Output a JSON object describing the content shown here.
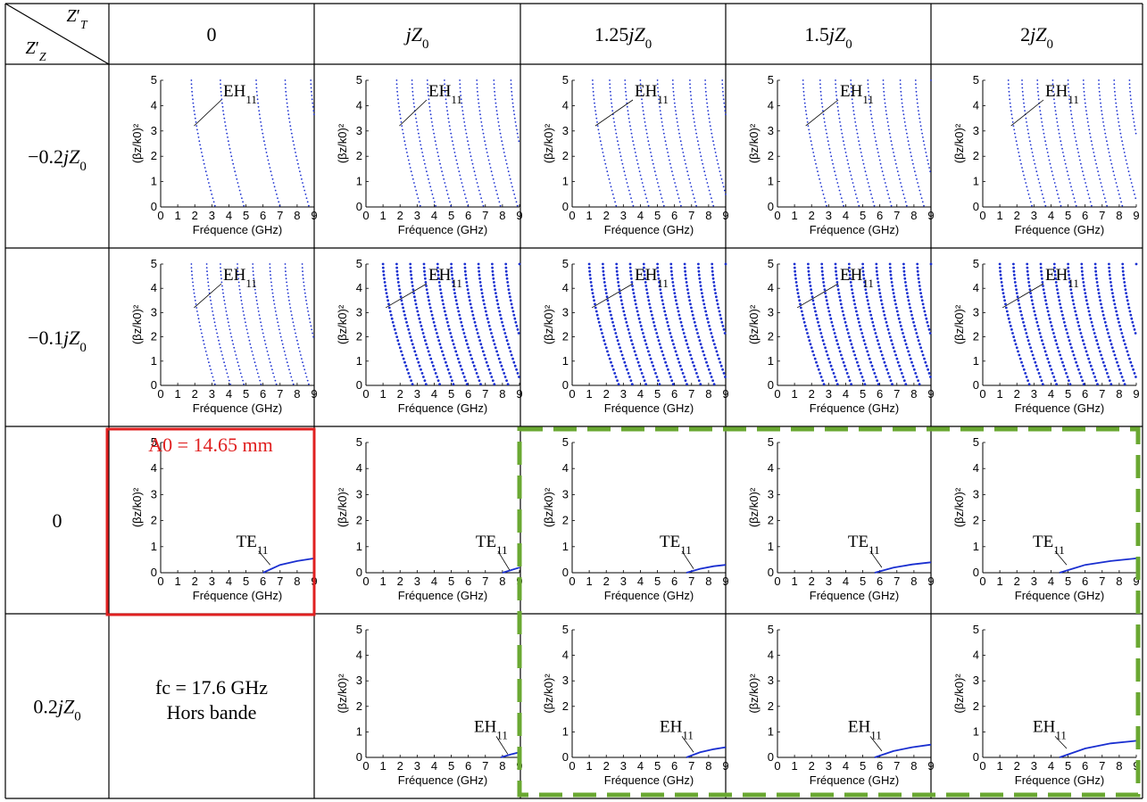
{
  "table": {
    "corner": {
      "top": "Z′T",
      "bottom": "Z′Z"
    },
    "col_headers": [
      "0",
      "jZ0",
      "1.25jZ0",
      "1.5jZ0",
      "2jZ0"
    ],
    "row_headers": [
      "−0.2jZ0",
      "−0.1jZ0",
      "0",
      "0.2jZ0"
    ]
  },
  "plot_axes": {
    "xlabel": "Fréquence (GHz)",
    "ylabel": "(βz/k0)²",
    "x_ticks": [
      "0",
      "1",
      "2",
      "3",
      "4",
      "5",
      "6",
      "7",
      "8",
      "9"
    ],
    "y_ticks": [
      "0",
      "1",
      "2",
      "3",
      "4",
      "5"
    ],
    "xlim": [
      0,
      9
    ],
    "ylim": [
      0,
      5
    ]
  },
  "highlight": {
    "red_box_label": "A0 = 14.65 mm",
    "red_box_color": "#e02020",
    "green_box_color": "#6aa832"
  },
  "note_cell": {
    "line1": "fc = 17.6 GHz",
    "line2": "Hors bande"
  },
  "curve_color": "#1a2fd0",
  "chart_data": [
    {
      "type": "scatter",
      "row": "−0.2jZ0",
      "col": "0",
      "mode_label": "EH11",
      "x_cutoffs": [
        1.8,
        3.5,
        5.6,
        7.3,
        8.8
      ]
    },
    {
      "type": "scatter",
      "row": "−0.2jZ0",
      "col": "jZ0",
      "mode_label": "EH11",
      "x_cutoffs": [
        1.8,
        2.7,
        3.6,
        4.6,
        5.5,
        6.5,
        7.5,
        8.5
      ]
    },
    {
      "type": "scatter",
      "row": "−0.2jZ0",
      "col": "1.25jZ0",
      "mode_label": "EH11",
      "x_cutoffs": [
        1.2,
        2.2,
        3.1,
        4.0,
        5.0,
        5.9,
        6.9,
        7.8,
        8.8
      ]
    },
    {
      "type": "scatter",
      "row": "−0.2jZ0",
      "col": "1.5jZ0",
      "mode_label": "EH11",
      "x_cutoffs": [
        1.5,
        2.5,
        3.4,
        4.3,
        5.3,
        6.2,
        7.2,
        8.1,
        9.0
      ]
    },
    {
      "type": "scatter",
      "row": "−0.2jZ0",
      "col": "2jZ0",
      "mode_label": "EH11",
      "x_cutoffs": [
        1.5,
        2.3,
        3.2,
        4.1,
        5.0,
        5.9,
        6.8,
        7.7,
        8.6
      ]
    },
    {
      "type": "scatter",
      "row": "−0.1jZ0",
      "col": "0",
      "mode_label": "EH11",
      "x_cutoffs": [
        1.8,
        2.7,
        3.5,
        4.5,
        5.4,
        6.4,
        7.3,
        8.3
      ]
    },
    {
      "type": "scatter",
      "row": "−0.1jZ0",
      "col": "jZ0",
      "mode_label": "EH11",
      "x_cutoffs": [
        1.0,
        1.8,
        2.6,
        3.4,
        4.2,
        5.0,
        5.8,
        6.6,
        7.4,
        8.2,
        9.0
      ]
    },
    {
      "type": "scatter",
      "row": "−0.1jZ0",
      "col": "1.25jZ0",
      "mode_label": "EH11",
      "x_cutoffs": [
        1.0,
        1.8,
        2.6,
        3.4,
        4.2,
        5.0,
        5.8,
        6.6,
        7.4,
        8.2,
        9.0
      ]
    },
    {
      "type": "scatter",
      "row": "−0.1jZ0",
      "col": "1.5jZ0",
      "mode_label": "EH11",
      "x_cutoffs": [
        1.0,
        1.8,
        2.6,
        3.4,
        4.2,
        5.0,
        5.8,
        6.6,
        7.4,
        8.2,
        9.0
      ]
    },
    {
      "type": "scatter",
      "row": "−0.1jZ0",
      "col": "2jZ0",
      "mode_label": "EH11",
      "x_cutoffs": [
        1.0,
        1.8,
        2.6,
        3.4,
        4.2,
        5.0,
        5.8,
        6.6,
        7.4,
        8.2,
        9.0
      ]
    },
    {
      "type": "line",
      "row": "0",
      "col": "0",
      "mode_label": "TE11",
      "x": [
        6.0,
        7.0,
        8.0,
        9.0
      ],
      "y": [
        0.0,
        0.3,
        0.45,
        0.55
      ]
    },
    {
      "type": "line",
      "row": "0",
      "col": "jZ0",
      "mode_label": "TE11",
      "x": [
        8.0,
        8.5,
        9.0
      ],
      "y": [
        0.0,
        0.1,
        0.2
      ]
    },
    {
      "type": "line",
      "row": "0",
      "col": "1.25jZ0",
      "mode_label": "TE11",
      "x": [
        6.7,
        7.5,
        8.3,
        9.0
      ],
      "y": [
        0.0,
        0.15,
        0.25,
        0.3
      ]
    },
    {
      "type": "line",
      "row": "0",
      "col": "1.5jZ0",
      "mode_label": "TE11",
      "x": [
        5.7,
        6.8,
        7.9,
        9.0
      ],
      "y": [
        0.0,
        0.2,
        0.32,
        0.4
      ]
    },
    {
      "type": "line",
      "row": "0",
      "col": "2jZ0",
      "mode_label": "TE11",
      "x": [
        4.5,
        6.0,
        7.5,
        9.0
      ],
      "y": [
        0.0,
        0.3,
        0.45,
        0.55
      ]
    },
    {
      "type": "line",
      "row": "0.2jZ0",
      "col": "jZ0",
      "mode_label": "EH11",
      "x": [
        7.9,
        8.5,
        9.0
      ],
      "y": [
        0.0,
        0.12,
        0.2
      ]
    },
    {
      "type": "line",
      "row": "0.2jZ0",
      "col": "1.25jZ0",
      "mode_label": "EH11",
      "x": [
        6.7,
        7.5,
        8.3,
        9.0
      ],
      "y": [
        0.0,
        0.2,
        0.32,
        0.4
      ]
    },
    {
      "type": "line",
      "row": "0.2jZ0",
      "col": "1.5jZ0",
      "mode_label": "EH11",
      "x": [
        5.7,
        6.8,
        7.9,
        9.0
      ],
      "y": [
        0.0,
        0.25,
        0.4,
        0.5
      ]
    },
    {
      "type": "line",
      "row": "0.2jZ0",
      "col": "2jZ0",
      "mode_label": "EH11",
      "x": [
        4.5,
        6.0,
        7.5,
        9.0
      ],
      "y": [
        0.0,
        0.35,
        0.55,
        0.65
      ]
    }
  ]
}
